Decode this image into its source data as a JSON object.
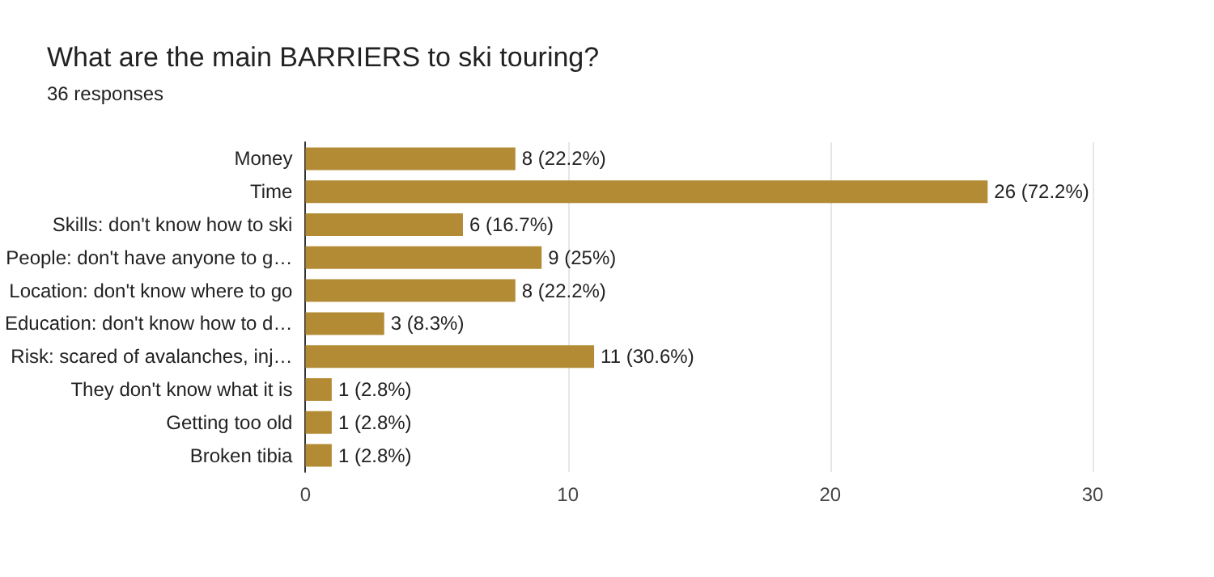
{
  "chart_data": {
    "type": "bar",
    "orientation": "horizontal",
    "title": "What are the main BARRIERS to ski touring?",
    "subtitle": "36 responses",
    "categories": [
      "Money",
      "Time",
      "Skills: don't know how to ski",
      "People: don't have anyone to g…",
      "Location: don't know where to go",
      "Education: don't know how to d…",
      "Risk: scared of avalanches, inj…",
      "They don't know what it is",
      "Getting too old",
      "Broken tibia"
    ],
    "values": [
      8,
      26,
      6,
      9,
      8,
      3,
      11,
      1,
      1,
      1
    ],
    "value_labels": [
      "8 (22.2%)",
      "26 (72.2%)",
      "6 (16.7%)",
      "9 (25%)",
      "8 (22.2%)",
      "3 (8.3%)",
      "11 (30.6%)",
      "1 (2.8%)",
      "1 (2.8%)",
      "1 (2.8%)"
    ],
    "color": "#b38b35",
    "xlim": [
      0,
      30
    ],
    "xticks": [
      0,
      10,
      20,
      30
    ],
    "grid": "x"
  }
}
